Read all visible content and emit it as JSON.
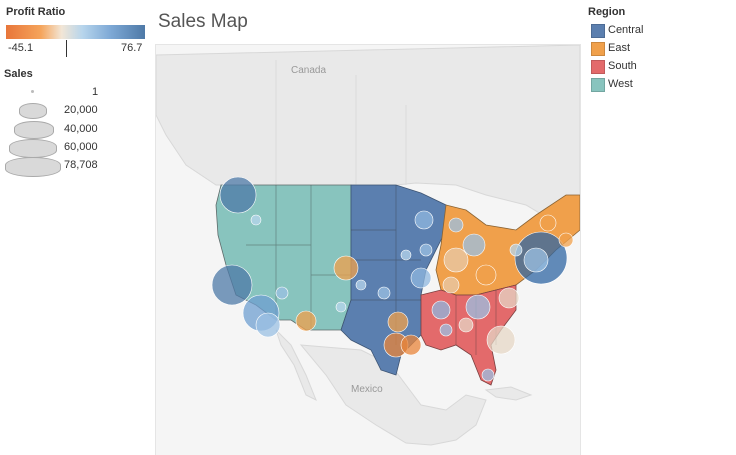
{
  "color_legend": {
    "title": "Profit Ratio",
    "min_label": "-45.1",
    "max_label": "76.7"
  },
  "size_legend": {
    "title": "Sales",
    "items": [
      "1",
      "20,000",
      "40,000",
      "60,000",
      "78,708"
    ]
  },
  "map": {
    "title": "Sales Map",
    "labels": {
      "canada": "Canada",
      "mexico": "Mexico"
    }
  },
  "region_legend": {
    "title": "Region",
    "items": [
      {
        "label": "Central",
        "color": "#5b7faf"
      },
      {
        "label": "East",
        "color": "#f0a04b"
      },
      {
        "label": "South",
        "color": "#e36a6b"
      },
      {
        "label": "West",
        "color": "#88c4be"
      }
    ]
  },
  "colors": {
    "central": "#5b7faf",
    "east": "#f0a04b",
    "south": "#e36a6b",
    "west": "#88c4be",
    "land": "#ececec",
    "water": "#f7f7f7"
  }
}
